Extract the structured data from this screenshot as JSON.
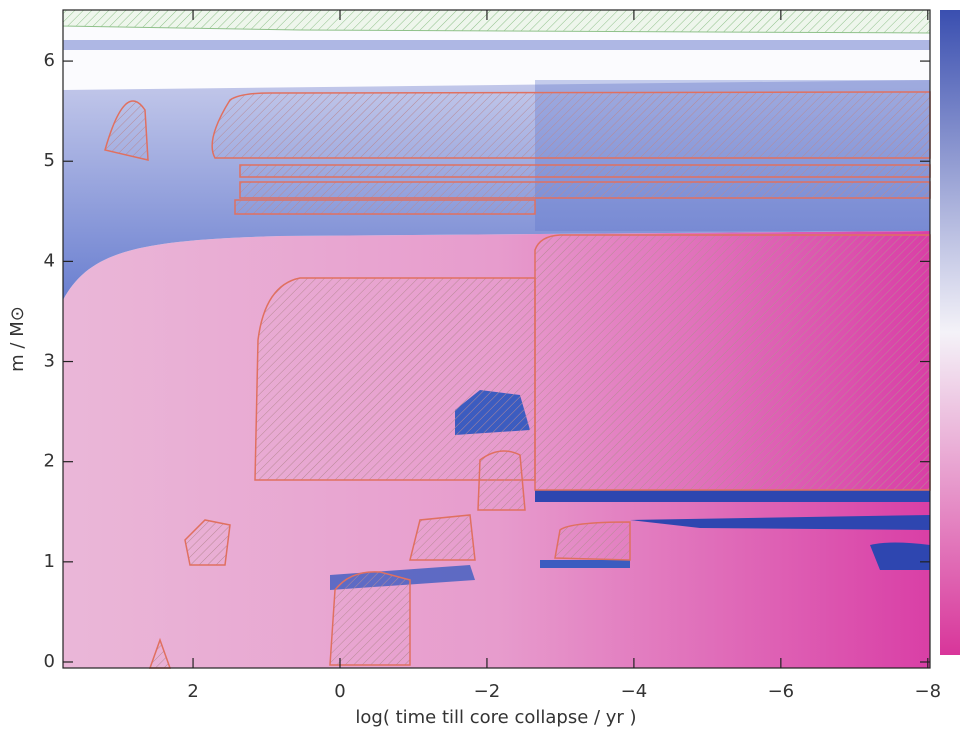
{
  "chart_data": {
    "type": "contour",
    "x_label": "log( time till core collapse / yr )",
    "y_label": "m / M⊙",
    "xlim": [
      3.77,
      -8.03
    ],
    "ylim": [
      -0.06,
      6.51
    ],
    "xticks": [
      2,
      0,
      {
        "value": -2,
        "label": "−2"
      },
      {
        "value": -4,
        "label": "−4"
      },
      {
        "value": -6,
        "label": "−6"
      },
      {
        "value": -8,
        "label": "−8"
      }
    ],
    "yticks": [
      0,
      1,
      2,
      3,
      4,
      5,
      6
    ]
  }
}
